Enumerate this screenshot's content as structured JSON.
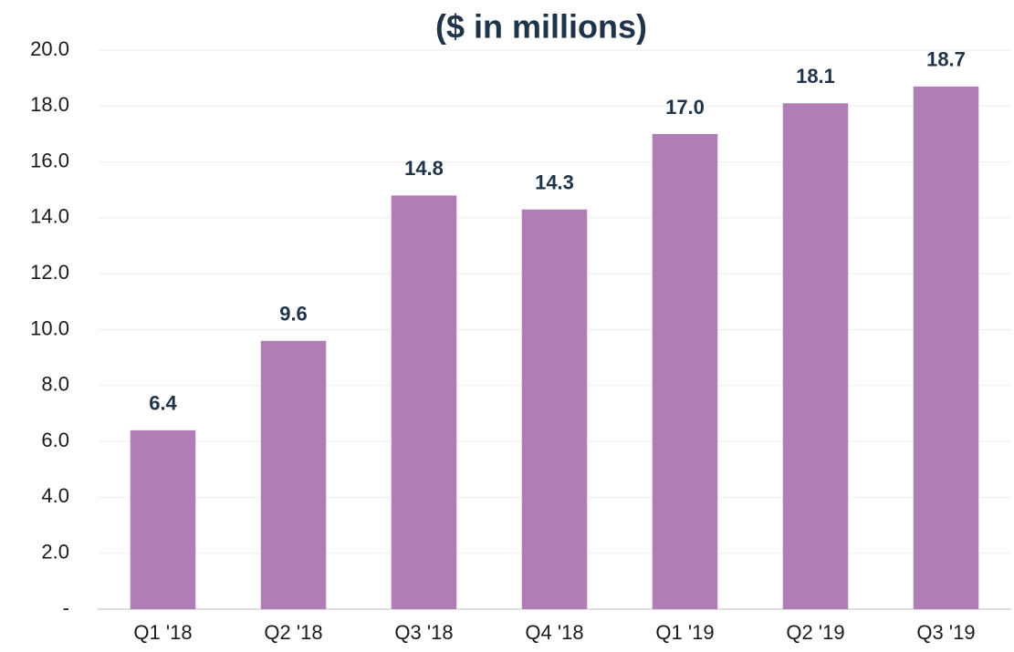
{
  "chart_data": {
    "type": "bar",
    "title": "($ in millions)",
    "categories": [
      "Q1 '18",
      "Q2 '18",
      "Q3 '18",
      "Q4 '18",
      "Q1 '19",
      "Q2 '19",
      "Q3 '19"
    ],
    "values": [
      6.4,
      9.6,
      14.8,
      14.3,
      17.0,
      18.1,
      18.7
    ],
    "value_labels": [
      "6.4",
      "9.6",
      "14.8",
      "14.3",
      "17.0",
      "18.1",
      "18.7"
    ],
    "color": "#b07db6",
    "ylim": [
      0,
      20
    ],
    "yticks": [
      {
        "value": 0,
        "label": "-"
      },
      {
        "value": 2,
        "label": "2.0"
      },
      {
        "value": 4,
        "label": "4.0"
      },
      {
        "value": 6,
        "label": "6.0"
      },
      {
        "value": 8,
        "label": "8.0"
      },
      {
        "value": 10,
        "label": "10.0"
      },
      {
        "value": 12,
        "label": "12.0"
      },
      {
        "value": 14,
        "label": "14.0"
      },
      {
        "value": 16,
        "label": "16.0"
      },
      {
        "value": 18,
        "label": "18.0"
      },
      {
        "value": 20,
        "label": "20.0"
      }
    ],
    "grid": true
  }
}
